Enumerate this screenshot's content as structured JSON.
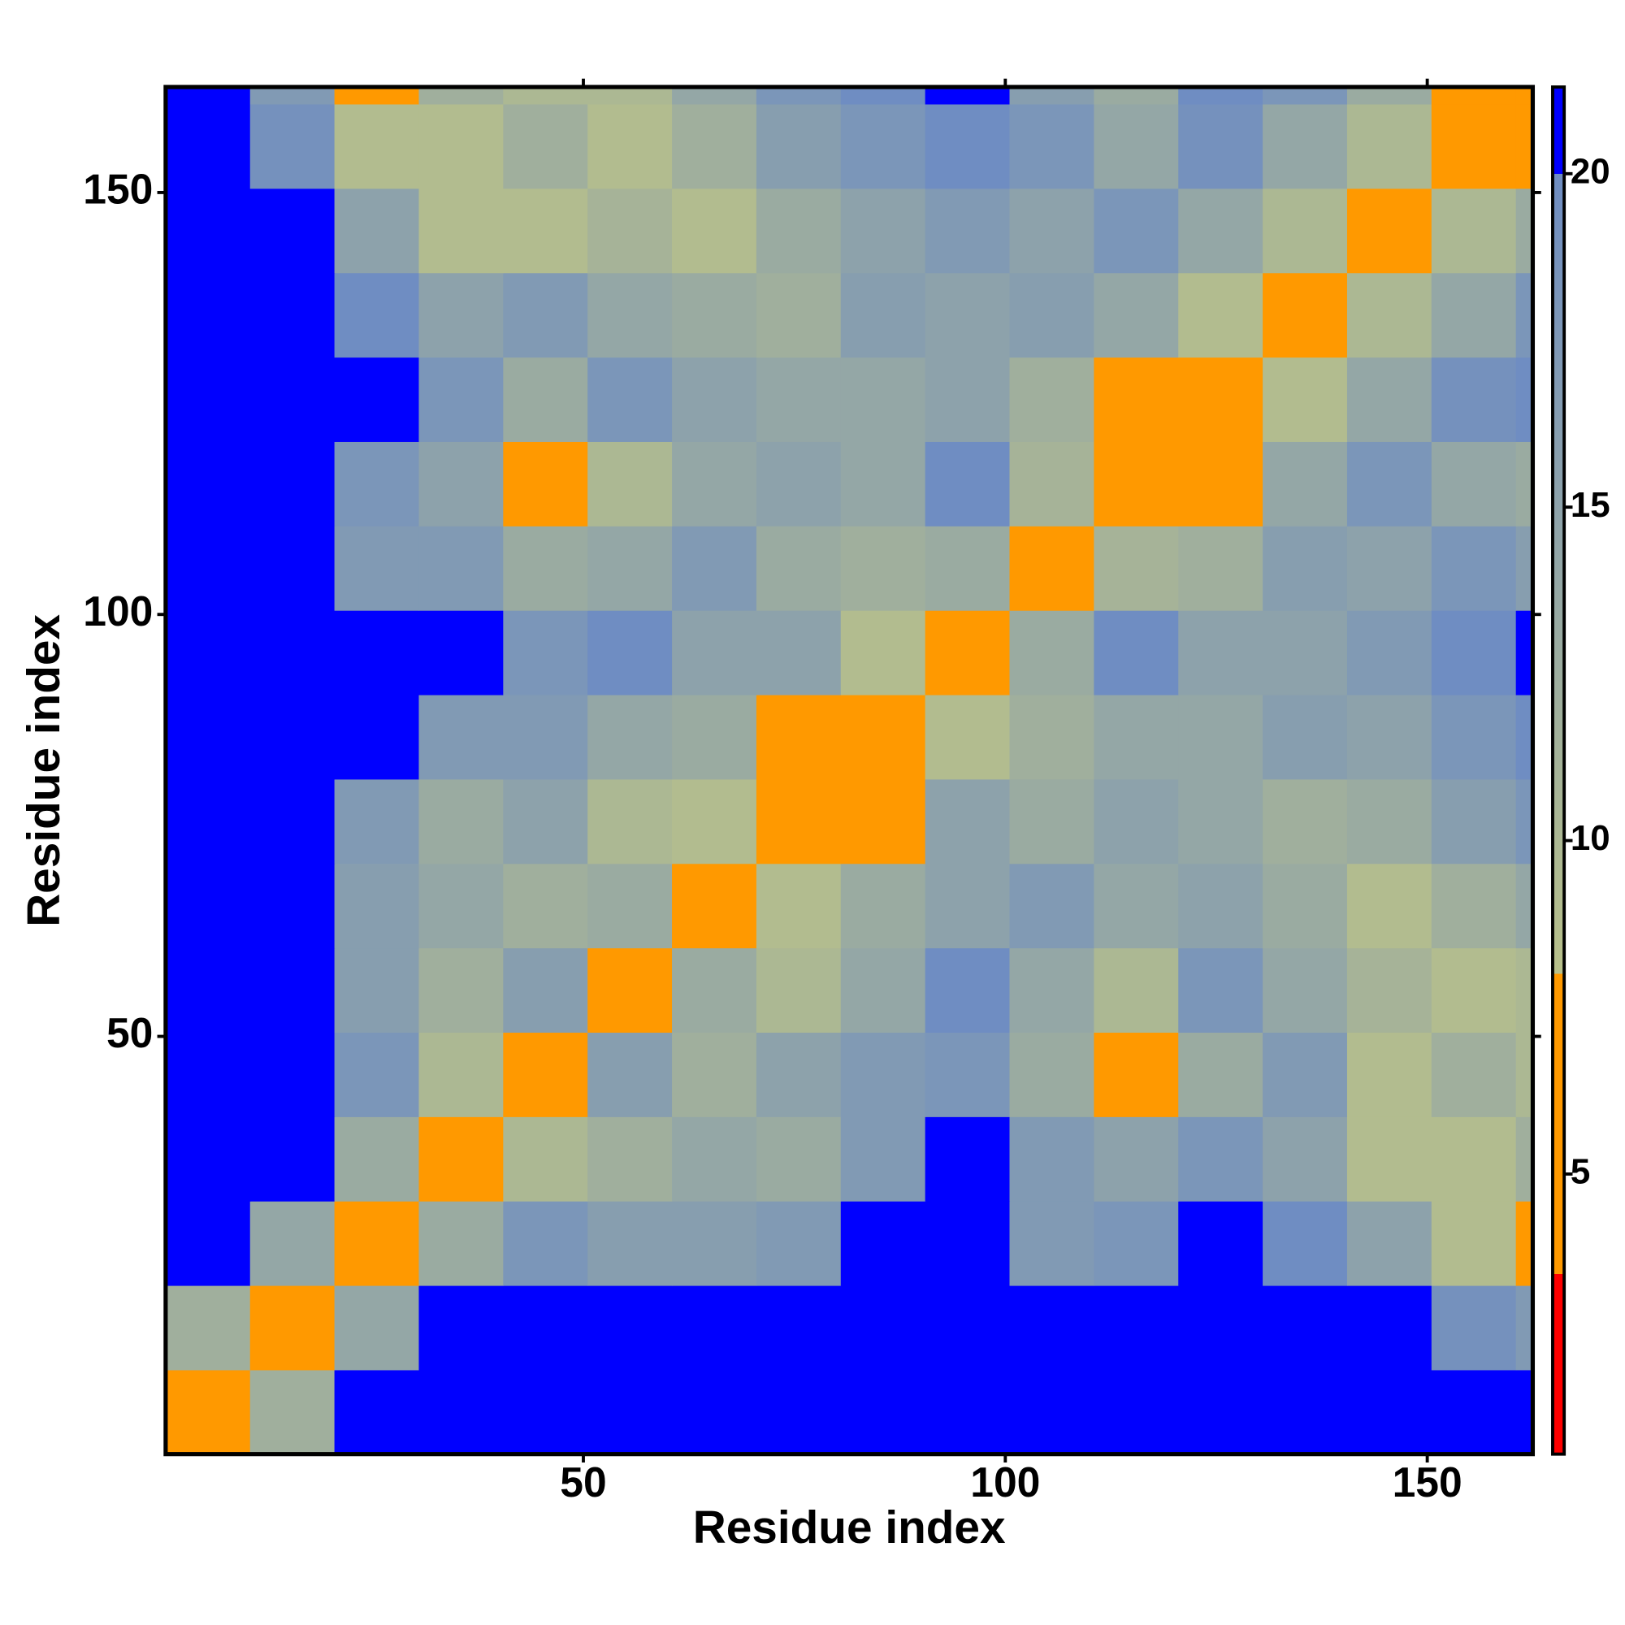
{
  "chart_data": {
    "type": "heatmap",
    "x_label": "Residue index",
    "y_label": "Residue index",
    "xlim": [
      0.5,
      162.5
    ],
    "ylim": [
      0.5,
      162.5
    ],
    "xticks": [
      50,
      100,
      150
    ],
    "yticks": [
      50,
      100,
      150
    ],
    "x_edges": [
      0.5,
      10.5,
      20.5,
      30.5,
      40.5,
      50.5,
      60.5,
      70.5,
      80.5,
      90.5,
      100.5,
      110.5,
      120.5,
      130.5,
      140.5,
      150.5,
      160.5,
      162.5
    ],
    "y_edges": [
      0.5,
      10.5,
      20.5,
      30.5,
      40.5,
      50.5,
      60.5,
      70.5,
      80.5,
      90.5,
      100.5,
      110.5,
      120.5,
      130.5,
      140.5,
      150.5,
      160.5,
      162.5
    ],
    "z": [
      [
        4,
        12,
        21,
        21,
        21,
        21,
        21,
        21,
        21,
        21,
        21,
        21,
        21,
        21,
        21,
        21,
        21
      ],
      [
        12,
        5,
        14,
        21,
        21,
        21,
        21,
        21,
        21,
        21,
        21,
        21,
        21,
        21,
        21,
        19,
        17
      ],
      [
        21,
        14,
        5,
        13,
        18,
        16,
        16,
        17,
        21,
        21,
        17,
        18,
        21,
        20,
        15,
        9,
        7
      ],
      [
        21,
        21,
        13,
        5,
        10,
        12,
        14,
        13,
        17,
        21,
        17,
        15,
        18,
        15,
        9,
        9,
        12
      ],
      [
        21,
        21,
        18,
        10,
        5,
        16,
        12,
        15,
        17,
        18,
        13,
        8,
        13,
        17,
        9,
        12,
        10
      ],
      [
        21,
        21,
        16,
        12,
        16,
        5,
        13,
        10,
        14,
        20,
        14,
        10,
        18,
        14,
        11,
        9,
        10
      ],
      [
        21,
        21,
        16,
        14,
        12,
        13,
        5,
        9,
        13,
        15,
        17,
        14,
        15,
        13,
        9,
        12,
        14
      ],
      [
        21,
        21,
        17,
        13,
        15,
        10,
        9,
        5,
        8,
        15,
        13,
        15,
        14,
        12,
        13,
        16,
        18
      ],
      [
        21,
        21,
        21,
        17,
        17,
        14,
        13,
        8,
        5,
        9,
        12,
        14,
        14,
        16,
        15,
        18,
        20
      ],
      [
        21,
        21,
        21,
        21,
        18,
        20,
        15,
        15,
        9,
        5,
        13,
        20,
        15,
        15,
        17,
        20,
        21
      ],
      [
        21,
        21,
        17,
        17,
        13,
        14,
        17,
        13,
        12,
        13,
        5,
        11,
        12,
        16,
        15,
        18,
        16
      ],
      [
        21,
        21,
        18,
        15,
        8,
        10,
        14,
        15,
        14,
        20,
        11,
        5,
        8,
        14,
        18,
        14,
        13
      ],
      [
        21,
        21,
        21,
        18,
        13,
        18,
        15,
        14,
        14,
        15,
        12,
        8,
        5,
        9,
        14,
        19,
        20
      ],
      [
        21,
        21,
        20,
        15,
        17,
        14,
        13,
        12,
        16,
        15,
        16,
        14,
        9,
        5,
        10,
        14,
        18
      ],
      [
        21,
        21,
        15,
        9,
        9,
        11,
        9,
        13,
        15,
        17,
        15,
        18,
        14,
        10,
        5,
        10,
        13
      ],
      [
        21,
        19,
        9,
        9,
        12,
        9,
        12,
        16,
        18,
        20,
        18,
        14,
        19,
        14,
        10,
        5,
        8
      ],
      [
        21,
        17,
        7,
        12,
        10,
        10,
        14,
        18,
        20,
        21,
        16,
        13,
        20,
        18,
        13,
        8,
        4
      ]
    ],
    "colorbar": {
      "lim": [
        0.8,
        21.3
      ],
      "ticks": [
        5,
        10,
        15,
        20
      ],
      "stops": [
        {
          "value": 0.8,
          "color": "#ff0000"
        },
        {
          "value": 3.5,
          "color": "#ff0000"
        },
        {
          "value": 3.5,
          "color": "#ff9900"
        },
        {
          "value": 8,
          "color": "#ff9900"
        },
        {
          "value": 8,
          "color": "#b8c08a"
        },
        {
          "value": 20,
          "color": "#6f8dc2"
        },
        {
          "value": 20,
          "color": "#0000ff"
        },
        {
          "value": 21.3,
          "color": "#0000ff"
        }
      ]
    }
  }
}
